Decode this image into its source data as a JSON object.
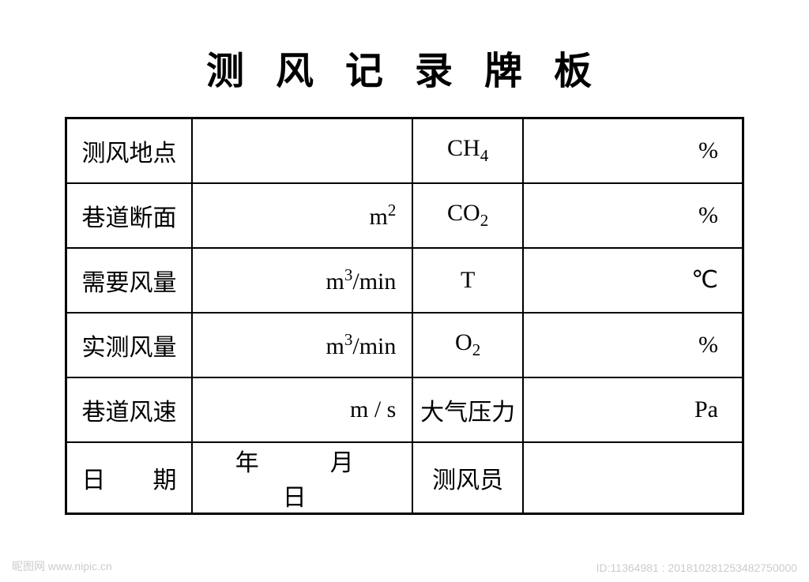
{
  "title": "测 风 记 录 牌 板",
  "table": {
    "rows": [
      {
        "label1": "测风地点",
        "unit1": "",
        "label2_html": "CH<sub>4</sub>",
        "unit2": "%"
      },
      {
        "label1": "巷道断面",
        "unit1_html": "m<sup>2</sup>",
        "label2_html": "CO<sub>2</sub>",
        "unit2": "%"
      },
      {
        "label1": "需要风量",
        "unit1_html": "m<sup>3</sup>/min",
        "label2": "T",
        "unit2": "℃"
      },
      {
        "label1": "实测风量",
        "unit1_html": "m<sup>3</sup>/min",
        "label2_html": "O<sub>2</sub>",
        "unit2": "%"
      },
      {
        "label1": "巷道风速",
        "unit1": "m / s",
        "label2": "大气压力",
        "unit2": "Pa"
      },
      {
        "label1": "日　　期",
        "date_text": "年　月　日",
        "label2": "测风员",
        "unit2": ""
      }
    ]
  },
  "watermark": {
    "left": "昵图网  www.nipic.cn",
    "right": "ID:11364981 : 201810281253482750000"
  },
  "styling": {
    "background_color": "#ffffff",
    "text_color": "#000000",
    "border_color": "#000000",
    "title_fontsize": 48,
    "cell_fontsize": 30,
    "watermark_color": "#cccccc",
    "font_family": "SimSun"
  }
}
